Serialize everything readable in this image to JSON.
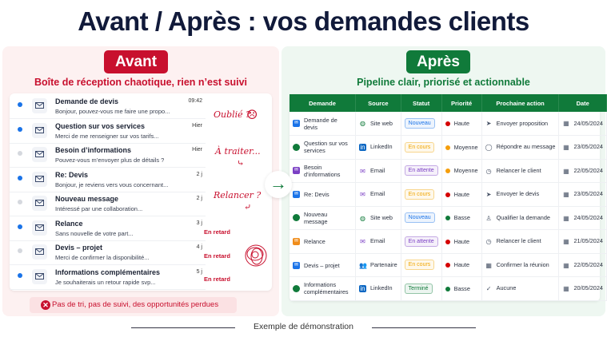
{
  "title": "Avant / Après : vos demandes clients",
  "before": {
    "badge": "Avant",
    "subtitle": "Boîte de réception chaotique, rien n’est suivi",
    "emails": [
      {
        "from": "Demande de devis",
        "preview": "Bonjour, pouvez-vous me faire une propo...",
        "time": "09:42",
        "unread": true
      },
      {
        "from": "Question sur vos services",
        "preview": "Merci de me renseigner sur vos tarifs...",
        "time": "Hier",
        "unread": true
      },
      {
        "from": "Besoin d’informations",
        "preview": "Pouvez-vous m’envoyer plus de détails ?",
        "time": "Hier",
        "unread": false
      },
      {
        "from": "Re: Devis",
        "preview": "Bonjour, je reviens vers vous concernant...",
        "time": "2 j",
        "unread": true
      },
      {
        "from": "Nouveau message",
        "preview": "Intéressé par une collaboration...",
        "time": "2 j",
        "unread": false
      },
      {
        "from": "Relance",
        "preview": "Sans nouvelle de votre part...",
        "time": "3 j",
        "unread": true
      },
      {
        "from": "Devis – projet",
        "preview": "Merci de confirmer la disponibilité...",
        "time": "4 j",
        "unread": false
      },
      {
        "from": "Informations complémentaires",
        "preview": "Je souhaiterais un retour rapide svp...",
        "time": "5 j",
        "unread": true
      }
    ],
    "annotations": {
      "forgotten": "Oublié ?",
      "to_process": "À traiter...",
      "follow_up": "Relancer ?",
      "late": "En retard"
    },
    "problem": "Pas de tri, pas de suivi, des opportunités perdues"
  },
  "after": {
    "badge": "Après",
    "subtitle": "Pipeline clair,  priorisé et actionnable",
    "columns": [
      "Demande",
      "Source",
      "Statut",
      "Priorité",
      "Prochaine action",
      "Date"
    ],
    "rows": [
      {
        "request": "Demande de devis",
        "req_icon": "mail-icon",
        "req_color": "#1a73e8",
        "source": "Site web",
        "src_icon": "globe-icon",
        "status": "Nouveau",
        "priority": "Haute",
        "action": "Envoyer proposition",
        "act_icon": "send-icon",
        "date": "24/05/2024"
      },
      {
        "request": "Question sur vos services",
        "req_icon": "chat-icon",
        "req_color": "#107a3a",
        "source": "LinkedIn",
        "src_icon": "linkedin-icon",
        "status": "En cours",
        "priority": "Moyenne",
        "action": "Répondre au message",
        "act_icon": "comment-icon",
        "date": "23/05/2024"
      },
      {
        "request": "Besoin d’informations",
        "req_icon": "mail-icon",
        "req_color": "#7b3fc4",
        "source": "Email",
        "src_icon": "mail-icon",
        "status": "En attente",
        "priority": "Moyenne",
        "action": "Relancer le client",
        "act_icon": "clock-icon",
        "date": "22/05/2024"
      },
      {
        "request": "Re: Devis",
        "req_icon": "mail-icon",
        "req_color": "#1a73e8",
        "source": "Email",
        "src_icon": "mail-icon",
        "status": "En cours",
        "priority": "Haute",
        "action": "Envoyer le devis",
        "act_icon": "send-icon",
        "date": "23/05/2024"
      },
      {
        "request": "Nouveau message",
        "req_icon": "chat-icon",
        "req_color": "#107a3a",
        "source": "Site web",
        "src_icon": "globe-icon",
        "status": "Nouveau",
        "priority": "Basse",
        "action": "Qualifier la demande",
        "act_icon": "user-icon",
        "date": "24/05/2024"
      },
      {
        "request": "Relance",
        "req_icon": "mail-icon",
        "req_color": "#f08c1a",
        "source": "Email",
        "src_icon": "mail-icon",
        "status": "En attente",
        "priority": "Haute",
        "action": "Relancer le client",
        "act_icon": "clock-icon",
        "date": "21/05/2024"
      },
      {
        "request": "Devis – projet",
        "req_icon": "mail-icon",
        "req_color": "#1a73e8",
        "source": "Partenaire",
        "src_icon": "partner-icon",
        "status": "En cours",
        "priority": "Haute",
        "action": "Confirmer la réunion",
        "act_icon": "calendar-icon",
        "date": "22/05/2024"
      },
      {
        "request": "Informations complémentaires",
        "req_icon": "chat-icon",
        "req_color": "#107a3a",
        "source": "LinkedIn",
        "src_icon": "linkedin-icon",
        "status": "Terminé",
        "priority": "Basse",
        "action": "Aucune",
        "act_icon": "check-icon",
        "date": "20/05/2024"
      }
    ],
    "status_colors": {
      "Nouveau": "#1a73e8",
      "En cours": "#f0a500",
      "En attente": "#7b3fc4",
      "Terminé": "#107a3a"
    },
    "priority_colors": {
      "Haute": "#d50000",
      "Moyenne": "#f59e0b",
      "Basse": "#107a3a"
    }
  },
  "footer": "Exemple de démonstration"
}
